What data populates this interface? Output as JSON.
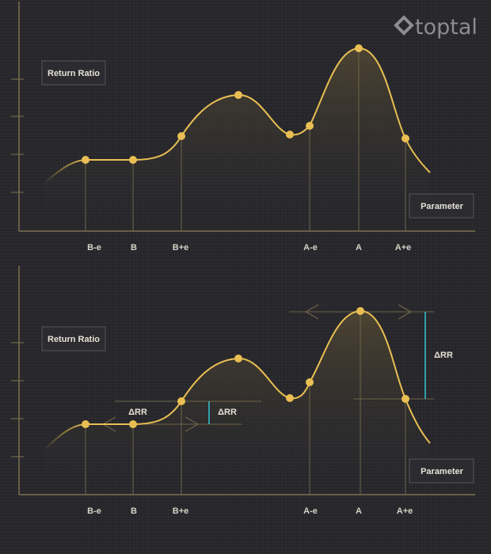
{
  "logo": {
    "text": "toptal"
  },
  "colors": {
    "curve": "#e9bf53",
    "axis": "#7d7152",
    "guide": "#6e6448",
    "delta": "#35c7d6",
    "label_box_bg": "#2c2c30",
    "label_box_border": "#55555a"
  },
  "diagrams": [
    {
      "y_label": "Return Ratio",
      "x_label": "Parameter",
      "ticks": [
        "B-e",
        "B",
        "B+e",
        "A-e",
        "A",
        "A+e"
      ]
    },
    {
      "y_label": "Return Ratio",
      "x_label": "Parameter",
      "ticks": [
        "B-e",
        "B",
        "B+e",
        "A-e",
        "A",
        "A+e"
      ],
      "delta_left": "ΔRR",
      "delta_mid": "ΔRR",
      "delta_peak": "ΔRR"
    }
  ]
}
